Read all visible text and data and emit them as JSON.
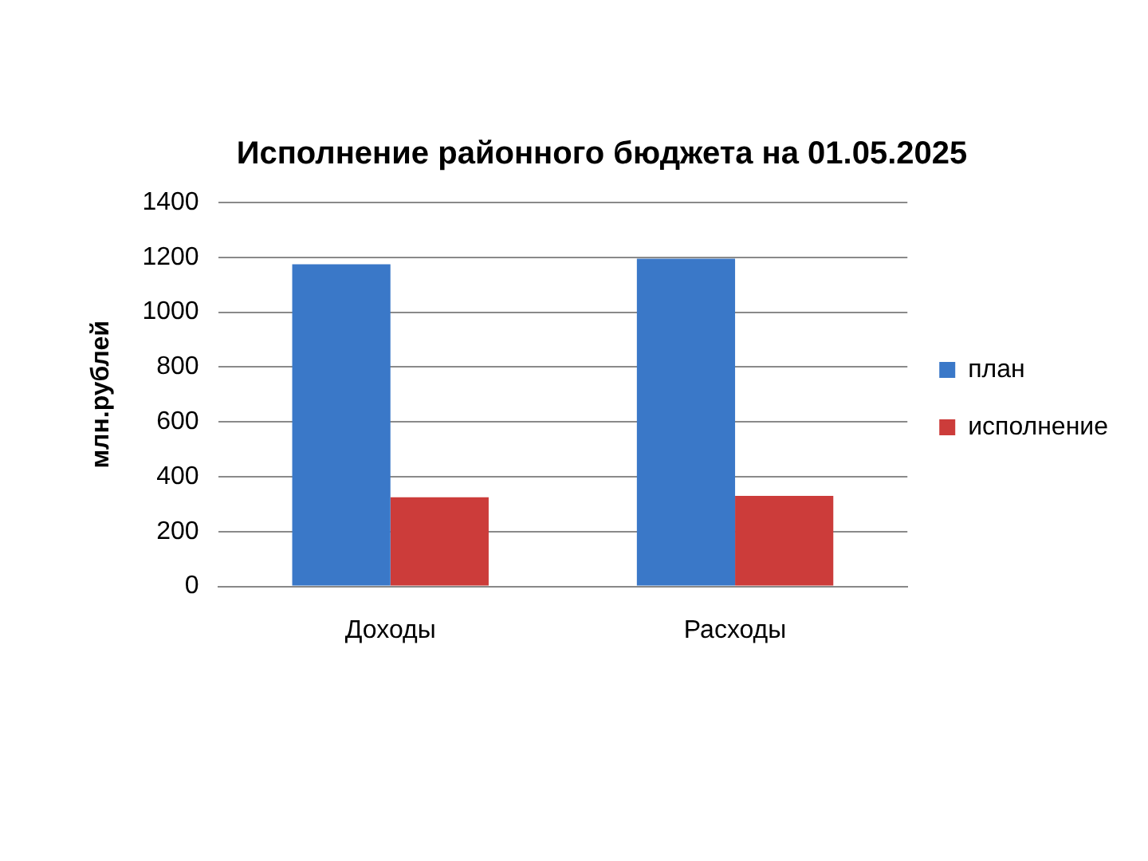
{
  "chart_data": {
    "type": "bar",
    "title": "Исполнение районного бюджета на 01.05.2025",
    "ylabel": "млн.рублей",
    "categories": [
      "Доходы",
      "Расходы"
    ],
    "series": [
      {
        "name": "план",
        "color": "#3a78c8",
        "values": [
          1175,
          1195
        ]
      },
      {
        "name": "исполнение",
        "color": "#cc3c3a",
        "values": [
          325,
          330
        ]
      }
    ],
    "ylim": [
      0,
      1400
    ],
    "yticks": [
      0,
      200,
      400,
      600,
      800,
      1000,
      1200,
      1400
    ],
    "grid": "y",
    "legend": "right"
  }
}
